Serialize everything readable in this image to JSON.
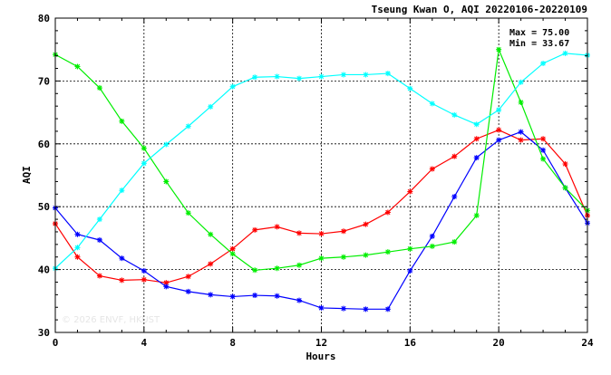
{
  "chart_data": {
    "type": "line",
    "title": "Tseung Kwan O, AQI 20220106-20220109",
    "xlabel": "Hours",
    "ylabel": "AQI",
    "xlim": [
      0,
      24
    ],
    "ylim": [
      30,
      80
    ],
    "x_ticks": [
      0,
      4,
      8,
      12,
      16,
      20,
      24
    ],
    "y_ticks": [
      30,
      40,
      50,
      60,
      70,
      80
    ],
    "grid": true,
    "stats": {
      "max": "Max = 75.00",
      "min": "Min = 33.67"
    },
    "watermark": "© 2026 ENVF, HKUST",
    "x": [
      0,
      1,
      2,
      3,
      4,
      5,
      6,
      7,
      8,
      9,
      10,
      11,
      12,
      13,
      14,
      15,
      16,
      17,
      18,
      19,
      20,
      21,
      22,
      23,
      24
    ],
    "series": [
      {
        "color": "#ff0000",
        "values": [
          47.3,
          42.0,
          39.0,
          38.3,
          38.4,
          37.9,
          38.9,
          40.9,
          43.3,
          46.3,
          46.8,
          45.8,
          45.7,
          46.1,
          47.2,
          49.1,
          52.4,
          56.0,
          58.0,
          60.8,
          62.2,
          60.6,
          60.8,
          56.8,
          48.6
        ]
      },
      {
        "color": "#0000ff",
        "values": [
          49.8,
          45.6,
          44.7,
          41.8,
          39.8,
          37.3,
          36.5,
          36.0,
          35.7,
          35.9,
          35.8,
          35.1,
          33.9,
          33.8,
          33.7,
          33.7,
          39.8,
          45.3,
          51.6,
          57.8,
          60.6,
          61.9,
          59.0,
          53.0,
          47.4
        ]
      },
      {
        "color": "#00ee00",
        "values": [
          74.2,
          72.3,
          68.9,
          63.6,
          59.3,
          54.0,
          49.0,
          45.6,
          42.5,
          39.9,
          40.2,
          40.7,
          41.8,
          42.0,
          42.3,
          42.8,
          43.3,
          43.7,
          44.4,
          48.6,
          75.0,
          66.6,
          57.6,
          53.0,
          49.4
        ]
      },
      {
        "color": "#00ffff",
        "values": [
          40.2,
          43.5,
          48.0,
          52.6,
          56.9,
          59.9,
          62.8,
          65.9,
          69.1,
          70.6,
          70.7,
          70.4,
          70.7,
          71.0,
          71.0,
          71.2,
          68.8,
          66.4,
          64.6,
          63.1,
          65.4,
          69.8,
          72.8,
          74.4,
          74.1
        ]
      }
    ]
  }
}
